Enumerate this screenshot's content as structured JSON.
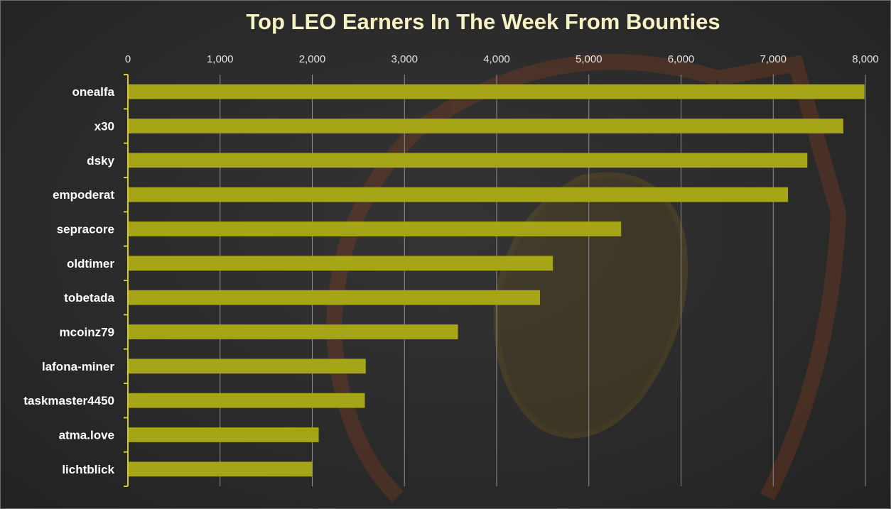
{
  "chart_data": {
    "type": "bar",
    "orientation": "horizontal",
    "title": "Top LEO Earners In The Week From Bounties",
    "categories": [
      "onealfa",
      "x30",
      "dsky",
      "empoderat",
      "sepracore",
      "oldtimer",
      "tobetada",
      "mcoinz79",
      "lafona-miner",
      "taskmaster4450",
      "atma.love",
      "lichtblick"
    ],
    "values": [
      7990,
      7760,
      7370,
      7160,
      5350,
      4610,
      4470,
      3580,
      2580,
      2570,
      2070,
      2000
    ],
    "x_ticks": [
      "0",
      "1,000",
      "2,000",
      "3,000",
      "4,000",
      "5,000",
      "6,000",
      "7,000",
      "8,000"
    ],
    "xlim": [
      0,
      8000
    ],
    "xlabel": "",
    "ylabel": "",
    "x_axis_position": "top",
    "grid": true,
    "legend": "none",
    "bar_color": "#a6a417",
    "axis_color": "#d8c820"
  }
}
